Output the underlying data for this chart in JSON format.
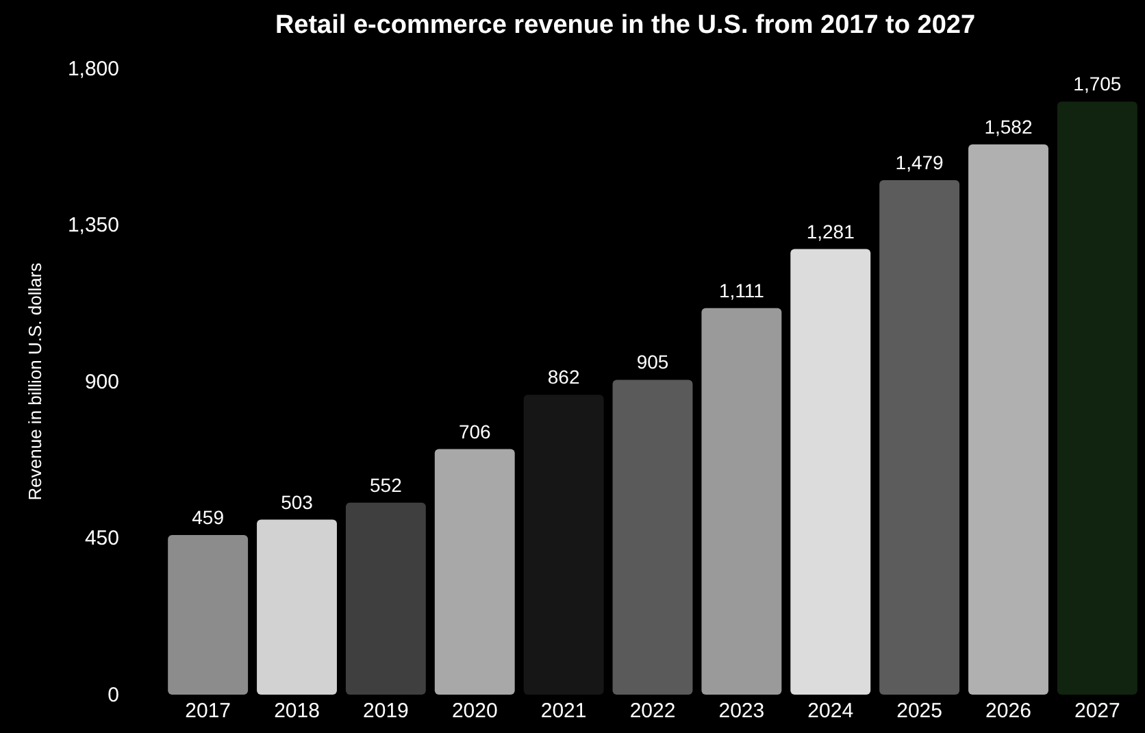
{
  "chart_data": {
    "type": "bar",
    "title": "Retail e-commerce revenue in the U.S. from 2017 to 2027",
    "ylabel": "Revenue in billion U.S. dollars",
    "categories": [
      "2017",
      "2018",
      "2019",
      "2020",
      "2021",
      "2022",
      "2023",
      "2024",
      "2025",
      "2026",
      "2027"
    ],
    "values": [
      459,
      503,
      552,
      706,
      862,
      905,
      1111,
      1281,
      1479,
      1582,
      1705
    ],
    "value_labels": [
      "459",
      "503",
      "552",
      "706",
      "862",
      "905",
      "1,111",
      "1,281",
      "1,479",
      "1,582",
      "1,705"
    ],
    "colors": [
      "#8c8c8c",
      "#d2d2d2",
      "#3f3f3f",
      "#a8a8a8",
      "#161616",
      "#5a5a5a",
      "#9a9a9a",
      "#dcdcdc",
      "#5c5c5c",
      "#b0b0b0",
      "#10240f"
    ],
    "ylim": [
      0,
      1800
    ],
    "yticks": [
      0,
      450,
      900,
      {
        "value": 1350,
        "label": "1,350"
      },
      {
        "value": 1800,
        "label": "1,800"
      }
    ],
    "grid": false
  }
}
